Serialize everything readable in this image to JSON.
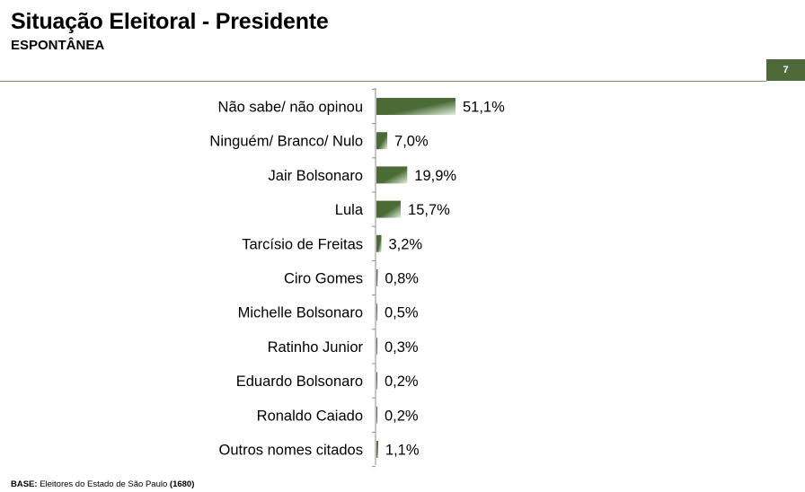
{
  "header": {
    "title": "Situação Eleitoral - Presidente",
    "subtitle": "ESPONTÂNEA",
    "page_number": "7"
  },
  "footer": {
    "base_label": "BASE:",
    "base_text": "Eleitores do Estado de São Paulo",
    "base_count": "(1680)"
  },
  "colors": {
    "bar_dark": "#4a6b35",
    "bar_light": "#e6efe0",
    "accent": "#4f6a3a"
  },
  "chart_data": {
    "type": "bar",
    "orientation": "horizontal",
    "categories": [
      "Não sabe/ não opinou",
      "Ninguém/ Branco/ Nulo",
      "Jair Bolsonaro",
      "Lula",
      "Tarcísio de Freitas",
      "Ciro Gomes",
      "Michelle Bolsonaro",
      "Ratinho Junior",
      "Eduardo Bolsonaro",
      "Ronaldo Caiado",
      "Outros nomes citados"
    ],
    "values": [
      51.1,
      7.0,
      19.9,
      15.7,
      3.2,
      0.8,
      0.5,
      0.3,
      0.2,
      0.2,
      1.1
    ],
    "value_labels": [
      "51,1%",
      "7,0%",
      "19,9%",
      "15,7%",
      "3,2%",
      "0,8%",
      "0,5%",
      "0,3%",
      "0,2%",
      "0,2%",
      "1,1%"
    ],
    "unit": "%",
    "xlim": [
      0,
      51.1
    ],
    "grid": false,
    "legend": false
  }
}
